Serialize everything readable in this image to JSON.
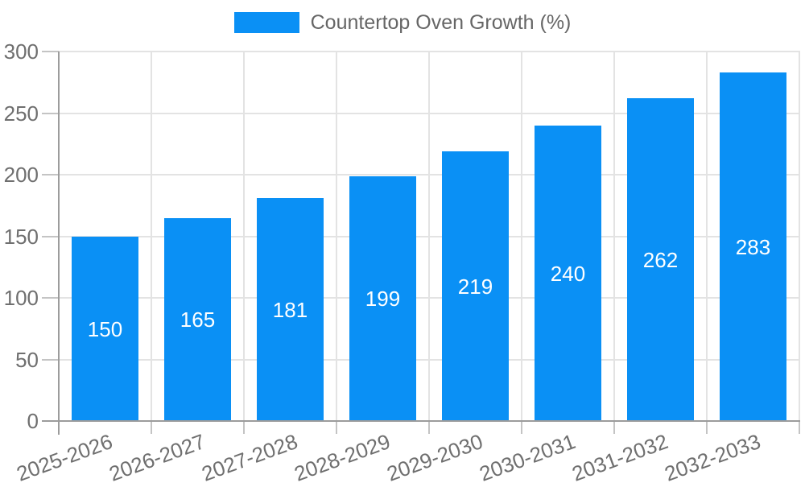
{
  "legend": {
    "label": "Countertop Oven Growth (%)"
  },
  "colors": {
    "bar": "#0a90f5",
    "grid": "#e3e3e3",
    "axis": "#9c9c9c",
    "tick": "#c4c4c4",
    "tick_label": "#6f6f6f",
    "bar_label": "#ffffff",
    "legend_text": "#666666",
    "background": "#ffffff"
  },
  "chart_data": {
    "type": "bar",
    "series_name": "Countertop Oven Growth (%)",
    "categories": [
      "2025-2026",
      "2026-2027",
      "2027-2028",
      "2028-2029",
      "2029-2030",
      "2030-2031",
      "2031-2032",
      "2032-2033"
    ],
    "values": [
      150,
      165,
      181,
      199,
      219,
      240,
      262,
      283
    ],
    "ylim": [
      0,
      300
    ],
    "yticks": [
      0,
      50,
      100,
      150,
      200,
      250,
      300
    ],
    "grid": true,
    "legend_position": "top",
    "bar_value_labels": true,
    "x_tick_rotation_deg": -20
  }
}
